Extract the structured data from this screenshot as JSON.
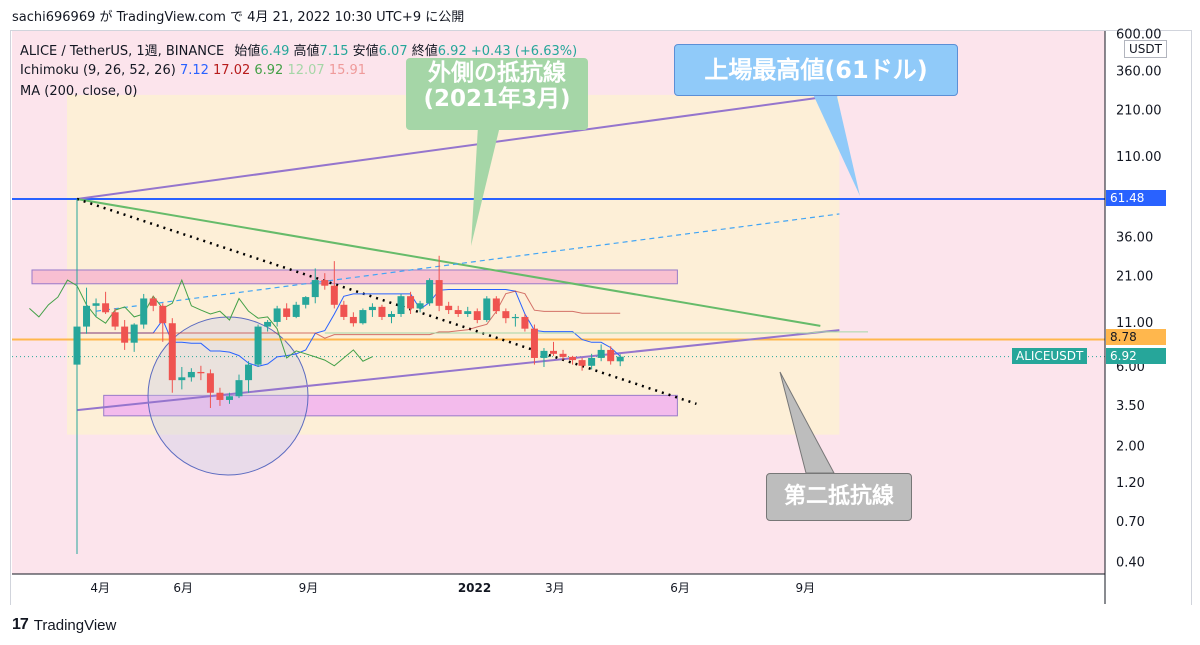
{
  "header": {
    "publish_line": "sachi696969 が TradingView.com で 4月 21, 2022 10:30 UTC+9 に公開"
  },
  "legend": {
    "symbol_line": "ALICE / TetherUS, 1週, BINANCE",
    "open_label": "始値",
    "open_value": "6.49",
    "high_label": "高値",
    "high_value": "7.15",
    "low_label": "安値",
    "low_value": "6.07",
    "close_label": "終値",
    "close_value": "6.92",
    "change": "+0.43 (+6.63%)",
    "ichimoku_label": "Ichimoku (9, 26, 52, 26)",
    "ichimoku_values": [
      "7.12",
      "17.02",
      "6.92",
      "12.07",
      "15.91"
    ],
    "ichimoku_colors": [
      "#2962ff",
      "#b71c1c",
      "#43a047",
      "#a5d6a7",
      "#ef9a9a"
    ],
    "ma_label": "MA (200, close, 0)"
  },
  "annotations": {
    "outer_resistance": "外側の抵抗線\n(2021年3月)",
    "all_time_high": "上場最高値(61ドル)",
    "second_resistance": "第二抵抗線"
  },
  "price_tags": {
    "currency": "USDT",
    "ath_line": "61.48",
    "orange_line": "8.78",
    "symbol_name": "ALICEUSDT",
    "last_price": "6.92"
  },
  "footer": {
    "brand": "TradingView"
  },
  "colors": {
    "blue_line": "#2962ff",
    "orange_line": "#ffb74d",
    "green_trend": "#66bb6a",
    "purple_channel": "#9575cd",
    "up_candle": "#26a69a",
    "down_candle": "#ef5350",
    "bg_pink": "#fce4ec",
    "zone_pink": "#f8bbd0",
    "zone_magenta": "#f3b6ef",
    "callout_green": "#a5d6a7",
    "callout_blue": "#90caf9",
    "callout_gray": "#bdbdbd"
  },
  "chart_data": {
    "type": "candlestick",
    "y_scale": "log",
    "y_ticks": [
      600,
      360,
      210,
      110,
      61.48,
      36,
      21,
      11,
      8.78,
      6.92,
      6,
      3.5,
      2,
      1.2,
      0.7,
      0.4
    ],
    "y_tick_labels": [
      "600.00",
      "360.00",
      "210.00",
      "110.00",
      "",
      "36.00",
      "21.00",
      "11.00",
      "",
      "",
      "6.00",
      "3.50",
      "2.00",
      "1.20",
      "0.70",
      "0.40"
    ],
    "x_tick_labels": [
      "4月",
      "6月",
      "9月",
      "2022",
      "3月",
      "6月",
      "9月"
    ],
    "x_tick_dates": [
      "2021-04",
      "2021-06",
      "2021-09",
      "2022-01",
      "2022-03",
      "2022-06",
      "2022-09"
    ],
    "ohlc": [
      [
        "2021-03-15",
        6.2,
        61.5,
        0.45,
        10.5
      ],
      [
        "2021-03-22",
        10.5,
        18.0,
        9.5,
        14.0
      ],
      [
        "2021-03-29",
        14.0,
        15.5,
        12.0,
        14.5
      ],
      [
        "2021-04-05",
        14.5,
        17.0,
        12.5,
        12.8
      ],
      [
        "2021-04-12",
        12.8,
        13.5,
        10.0,
        10.5
      ],
      [
        "2021-04-19",
        10.5,
        11.5,
        7.6,
        8.4
      ],
      [
        "2021-04-26",
        8.4,
        11.0,
        7.4,
        10.8
      ],
      [
        "2021-05-03",
        10.8,
        16.5,
        10.2,
        15.5
      ],
      [
        "2021-05-10",
        15.5,
        16.0,
        13.0,
        14.0
      ],
      [
        "2021-05-17",
        14.0,
        14.5,
        8.5,
        11.0
      ],
      [
        "2021-05-24",
        11.0,
        11.8,
        4.2,
        5.0
      ],
      [
        "2021-05-31",
        5.0,
        6.0,
        4.4,
        5.2
      ],
      [
        "2021-06-07",
        5.2,
        5.9,
        4.9,
        5.6
      ],
      [
        "2021-06-14",
        5.6,
        6.1,
        5.0,
        5.5
      ],
      [
        "2021-06-21",
        5.5,
        5.8,
        3.4,
        4.2
      ],
      [
        "2021-06-28",
        4.2,
        4.5,
        3.5,
        3.8
      ],
      [
        "2021-07-05",
        3.8,
        4.2,
        3.6,
        4.0
      ],
      [
        "2021-07-12",
        4.0,
        5.4,
        3.9,
        5.0
      ],
      [
        "2021-07-19",
        5.0,
        6.5,
        4.2,
        6.2
      ],
      [
        "2021-07-26",
        6.2,
        10.8,
        6.0,
        10.5
      ],
      [
        "2021-08-02",
        10.5,
        11.5,
        9.8,
        11.2
      ],
      [
        "2021-08-09",
        11.2,
        14.0,
        10.5,
        13.5
      ],
      [
        "2021-08-16",
        13.5,
        14.5,
        11.5,
        12.0
      ],
      [
        "2021-08-23",
        12.0,
        14.8,
        11.8,
        14.2
      ],
      [
        "2021-08-30",
        14.2,
        16.0,
        13.5,
        15.8
      ],
      [
        "2021-09-06",
        15.8,
        23.5,
        14.5,
        20.0
      ],
      [
        "2021-09-13",
        20.0,
        22.0,
        17.5,
        18.5
      ],
      [
        "2021-09-20",
        18.5,
        26.0,
        13.5,
        14.2
      ],
      [
        "2021-09-27",
        14.2,
        15.0,
        11.5,
        12.0
      ],
      [
        "2021-10-04",
        12.0,
        12.8,
        10.5,
        11.0
      ],
      [
        "2021-10-11",
        11.0,
        13.5,
        10.8,
        13.2
      ],
      [
        "2021-10-18",
        13.2,
        14.5,
        12.0,
        13.8
      ],
      [
        "2021-10-25",
        13.8,
        14.2,
        11.5,
        12.0
      ],
      [
        "2021-11-01",
        12.0,
        13.0,
        11.0,
        12.5
      ],
      [
        "2021-11-08",
        12.5,
        16.5,
        12.0,
        16.0
      ],
      [
        "2021-11-15",
        16.0,
        17.0,
        12.5,
        13.5
      ],
      [
        "2021-11-22",
        13.5,
        15.0,
        12.8,
        14.5
      ],
      [
        "2021-11-29",
        14.5,
        20.5,
        14.0,
        20.0
      ],
      [
        "2021-12-06",
        20.0,
        28.0,
        13.0,
        14.0
      ],
      [
        "2021-12-13",
        14.0,
        14.8,
        12.5,
        13.2
      ],
      [
        "2021-12-20",
        13.2,
        14.0,
        12.0,
        12.5
      ],
      [
        "2021-12-27",
        12.5,
        13.8,
        12.0,
        13.0
      ],
      [
        "2022-01-03",
        13.0,
        13.5,
        11.0,
        11.5
      ],
      [
        "2022-01-10",
        11.5,
        16.0,
        11.2,
        15.5
      ],
      [
        "2022-01-17",
        15.5,
        16.0,
        12.5,
        13.0
      ],
      [
        "2022-01-24",
        13.0,
        13.5,
        11.0,
        11.8
      ],
      [
        "2022-01-31",
        11.8,
        12.5,
        10.5,
        12.0
      ],
      [
        "2022-02-07",
        12.0,
        12.5,
        9.8,
        10.2
      ],
      [
        "2022-02-14",
        10.2,
        10.8,
        6.2,
        6.8
      ],
      [
        "2022-02-21",
        6.8,
        7.8,
        6.0,
        7.5
      ],
      [
        "2022-02-28",
        7.5,
        8.5,
        7.0,
        7.2
      ],
      [
        "2022-03-07",
        7.2,
        7.6,
        6.6,
        6.9
      ],
      [
        "2022-03-14",
        6.9,
        7.0,
        6.2,
        6.6
      ],
      [
        "2022-03-21",
        6.6,
        6.8,
        5.7,
        6.1
      ],
      [
        "2022-03-28",
        6.1,
        7.2,
        5.8,
        6.8
      ],
      [
        "2022-04-04",
        6.8,
        8.2,
        6.5,
        7.6
      ],
      [
        "2022-04-11",
        7.6,
        8.0,
        6.2,
        6.5
      ],
      [
        "2022-04-18",
        6.49,
        7.15,
        6.07,
        6.92
      ]
    ],
    "horizontal_levels": [
      61.48,
      8.78
    ],
    "zones": [
      {
        "from": "2021-03-15",
        "to": "2022-05-30",
        "low": 19.0,
        "high": 23.0,
        "color": "#f8bbd0"
      },
      {
        "from": "2021-05-03",
        "to": "2022-05-30",
        "low": 3.05,
        "high": 4.05,
        "color": "#f3b6ef"
      }
    ],
    "trendlines": [
      {
        "from": [
          "2021-03-15",
          61.5
        ],
        "to": [
          "2022-09-26",
          260
        ],
        "color": "#9575cd",
        "style": "solid"
      },
      {
        "from": [
          "2021-03-15",
          3.3
        ],
        "to": [
          "2022-09-26",
          10.0
        ],
        "color": "#9575cd",
        "style": "solid"
      },
      {
        "from": [
          "2021-03-15",
          61.5
        ],
        "to": [
          "2022-09-12",
          10.6
        ],
        "color": "#66bb6a",
        "style": "solid"
      },
      {
        "from": [
          "2021-03-15",
          61.5
        ],
        "to": [
          "2022-06-13",
          3.6
        ],
        "color": "#000000",
        "style": "dotted"
      },
      {
        "from": [
          "2021-03-29",
          13.0
        ],
        "to": [
          "2022-09-26",
          50.0
        ],
        "color": "#42a5f5",
        "style": "dashed"
      }
    ]
  }
}
